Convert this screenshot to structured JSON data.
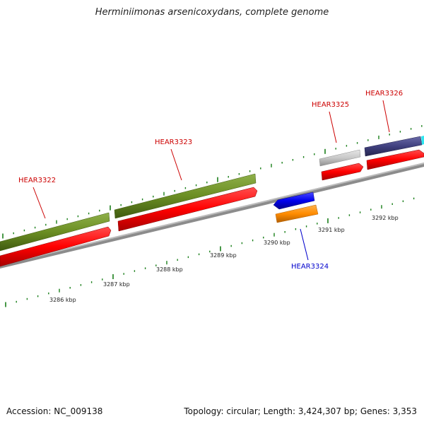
{
  "title": "Herminiimonas arsenicoxydans, complete genome",
  "footer": {
    "accession": "Accession: NC_009138",
    "summary": "Topology: circular; Length: 3,424,307 bp; Genes: 3,353"
  },
  "scale_labels": [
    "3286 kbp",
    "3287 kbp",
    "3288 kbp",
    "3289 kbp",
    "3290 kbp",
    "3291 kbp",
    "3292 kbp"
  ],
  "genes": [
    {
      "name": "HEAR3322",
      "strand": "forward",
      "color": "#cc0000"
    },
    {
      "name": "HEAR3323",
      "strand": "forward",
      "color": "#cc0000"
    },
    {
      "name": "HEAR3324",
      "strand": "reverse",
      "color": "#0000cc"
    },
    {
      "name": "HEAR3325",
      "strand": "forward",
      "color": "#cc0000"
    },
    {
      "name": "HEAR3326",
      "strand": "forward",
      "color": "#cc0000"
    }
  ],
  "colors": {
    "cds": "#ff0000",
    "gene_olive": "#6b8e23",
    "gene_blue": "#0000ee",
    "gene_orange": "#ff8c00",
    "gene_gray": "#c8c8c8",
    "gene_navy": "#40407f",
    "backbone": "#808080",
    "ticks": "#1a7f1a"
  }
}
